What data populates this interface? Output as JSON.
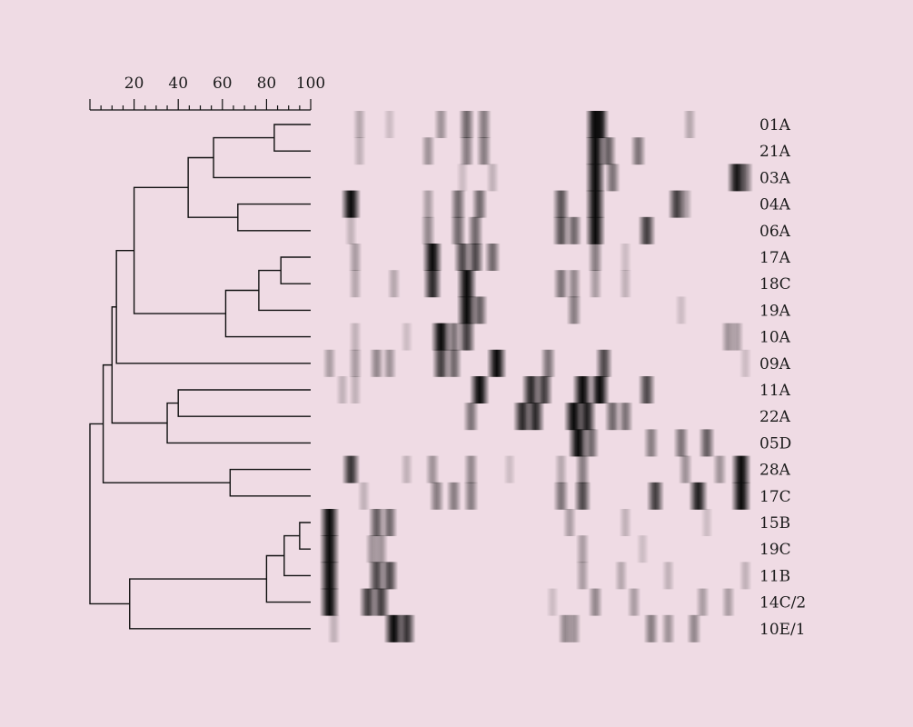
{
  "scale": {
    "tick_labels": [
      "20",
      "40",
      "60",
      "80",
      "100"
    ]
  },
  "colors": {
    "background": "#efdbe4",
    "line": "#111111",
    "band_dark": "#0a0a0a"
  },
  "dendrogram": {
    "leaves": [
      "01A",
      "21A",
      "03A",
      "04A",
      "06A",
      "17A",
      "18C",
      "19A",
      "10A",
      "09A",
      "11A",
      "22A",
      "05D",
      "28A",
      "17C",
      "15B",
      "19C",
      "11B",
      "14C/2",
      "10E/1"
    ],
    "merges": [
      {
        "a": 0,
        "b": 1,
        "sim": 83.5
      },
      {
        "a": "m0",
        "b": 2,
        "sim": 56
      },
      {
        "a": 3,
        "b": 4,
        "sim": 67
      },
      {
        "a": "m1",
        "b": "m2",
        "sim": 44.5
      },
      {
        "a": 5,
        "b": 6,
        "sim": 86.5
      },
      {
        "a": "m4",
        "b": 7,
        "sim": 76.5
      },
      {
        "a": "m5",
        "b": 8,
        "sim": 61.5
      },
      {
        "a": "m3",
        "b": "m6",
        "sim": 20
      },
      {
        "a": "m7",
        "b": 9,
        "sim": 12
      },
      {
        "a": 10,
        "b": 11,
        "sim": 40
      },
      {
        "a": "m9",
        "b": 12,
        "sim": 35
      },
      {
        "a": "m8",
        "b": "m10",
        "sim": 10
      },
      {
        "a": 13,
        "b": 14,
        "sim": 63.5
      },
      {
        "a": "m11",
        "b": "m12",
        "sim": 6
      },
      {
        "a": 15,
        "b": 16,
        "sim": 95
      },
      {
        "a": "m14",
        "b": 17,
        "sim": 88
      },
      {
        "a": "m15",
        "b": 18,
        "sim": 80
      },
      {
        "a": "m16",
        "b": 19,
        "sim": 18
      },
      {
        "a": "m13",
        "b": "m17",
        "sim": 0
      }
    ]
  },
  "bands": [
    [
      [
        0.08,
        0.25
      ],
      [
        0.15,
        0.15
      ],
      [
        0.27,
        0.35
      ],
      [
        0.33,
        0.55
      ],
      [
        0.37,
        0.45
      ],
      [
        0.63,
        1.0
      ],
      [
        0.64,
        0.9
      ],
      [
        0.85,
        0.25
      ]
    ],
    [
      [
        0.08,
        0.2
      ],
      [
        0.24,
        0.35
      ],
      [
        0.33,
        0.45
      ],
      [
        0.37,
        0.45
      ],
      [
        0.63,
        1.0
      ],
      [
        0.66,
        0.6
      ],
      [
        0.73,
        0.5
      ]
    ],
    [
      [
        0.32,
        0.15
      ],
      [
        0.39,
        0.2
      ],
      [
        0.63,
        1.0
      ],
      [
        0.67,
        0.5
      ],
      [
        0.96,
        0.95
      ],
      [
        0.98,
        0.5
      ]
    ],
    [
      [
        0.06,
        1.0
      ],
      [
        0.24,
        0.3
      ],
      [
        0.31,
        0.55
      ],
      [
        0.36,
        0.55
      ],
      [
        0.55,
        0.65
      ],
      [
        0.63,
        1.0
      ],
      [
        0.82,
        0.75
      ],
      [
        0.84,
        0.3
      ]
    ],
    [
      [
        0.06,
        0.2
      ],
      [
        0.24,
        0.4
      ],
      [
        0.31,
        0.55
      ],
      [
        0.35,
        0.55
      ],
      [
        0.55,
        0.65
      ],
      [
        0.58,
        0.55
      ],
      [
        0.63,
        1.0
      ],
      [
        0.75,
        0.75
      ]
    ],
    [
      [
        0.07,
        0.3
      ],
      [
        0.25,
        1.0
      ],
      [
        0.32,
        0.7
      ],
      [
        0.35,
        0.7
      ],
      [
        0.39,
        0.55
      ],
      [
        0.63,
        0.45
      ],
      [
        0.7,
        0.15
      ]
    ],
    [
      [
        0.07,
        0.25
      ],
      [
        0.16,
        0.25
      ],
      [
        0.25,
        0.85
      ],
      [
        0.33,
        1.0
      ],
      [
        0.55,
        0.5
      ],
      [
        0.58,
        0.4
      ],
      [
        0.63,
        0.3
      ],
      [
        0.7,
        0.2
      ]
    ],
    [
      [
        0.33,
        1.0
      ],
      [
        0.36,
        0.6
      ],
      [
        0.58,
        0.45
      ],
      [
        0.83,
        0.15
      ]
    ],
    [
      [
        0.07,
        0.2
      ],
      [
        0.19,
        0.15
      ],
      [
        0.27,
        1.0
      ],
      [
        0.3,
        0.5
      ],
      [
        0.33,
        0.75
      ],
      [
        0.94,
        0.35
      ],
      [
        0.96,
        0.3
      ]
    ],
    [
      [
        0.01,
        0.3
      ],
      [
        0.07,
        0.3
      ],
      [
        0.12,
        0.4
      ],
      [
        0.15,
        0.35
      ],
      [
        0.27,
        0.75
      ],
      [
        0.3,
        0.55
      ],
      [
        0.4,
        1.0
      ],
      [
        0.52,
        0.5
      ],
      [
        0.65,
        0.7
      ],
      [
        0.98,
        0.15
      ]
    ],
    [
      [
        0.04,
        0.2
      ],
      [
        0.07,
        0.2
      ],
      [
        0.36,
        1.0
      ],
      [
        0.48,
        0.85
      ],
      [
        0.51,
        0.75
      ],
      [
        0.6,
        1.0
      ],
      [
        0.64,
        1.0
      ],
      [
        0.75,
        0.7
      ]
    ],
    [
      [
        0.34,
        0.5
      ],
      [
        0.46,
        0.85
      ],
      [
        0.49,
        0.85
      ],
      [
        0.58,
        1.0
      ],
      [
        0.61,
        0.9
      ],
      [
        0.67,
        0.55
      ],
      [
        0.7,
        0.5
      ]
    ],
    [
      [
        0.59,
        1.0
      ],
      [
        0.62,
        0.55
      ],
      [
        0.76,
        0.45
      ],
      [
        0.83,
        0.5
      ],
      [
        0.89,
        0.6
      ]
    ],
    [
      [
        0.06,
        0.8
      ],
      [
        0.19,
        0.2
      ],
      [
        0.25,
        0.35
      ],
      [
        0.34,
        0.4
      ],
      [
        0.43,
        0.15
      ],
      [
        0.55,
        0.25
      ],
      [
        0.6,
        0.45
      ],
      [
        0.84,
        0.35
      ],
      [
        0.92,
        0.35
      ],
      [
        0.97,
        1.0
      ]
    ],
    [
      [
        0.09,
        0.2
      ],
      [
        0.26,
        0.45
      ],
      [
        0.3,
        0.45
      ],
      [
        0.34,
        0.45
      ],
      [
        0.55,
        0.5
      ],
      [
        0.6,
        0.7
      ],
      [
        0.77,
        0.75
      ],
      [
        0.87,
        0.9
      ],
      [
        0.97,
        1.0
      ]
    ],
    [
      [
        0.01,
        1.0
      ],
      [
        0.12,
        0.6
      ],
      [
        0.15,
        0.55
      ],
      [
        0.57,
        0.3
      ],
      [
        0.7,
        0.2
      ],
      [
        0.89,
        0.15
      ]
    ],
    [
      [
        0.01,
        1.0
      ],
      [
        0.11,
        0.35
      ],
      [
        0.13,
        0.35
      ],
      [
        0.6,
        0.3
      ],
      [
        0.74,
        0.15
      ]
    ],
    [
      [
        0.01,
        1.0
      ],
      [
        0.12,
        0.7
      ],
      [
        0.15,
        0.7
      ],
      [
        0.6,
        0.3
      ],
      [
        0.69,
        0.25
      ],
      [
        0.8,
        0.2
      ],
      [
        0.98,
        0.2
      ]
    ],
    [
      [
        0.01,
        1.0
      ],
      [
        0.1,
        0.75
      ],
      [
        0.13,
        0.75
      ],
      [
        0.53,
        0.15
      ],
      [
        0.63,
        0.4
      ],
      [
        0.72,
        0.3
      ],
      [
        0.88,
        0.3
      ],
      [
        0.94,
        0.3
      ]
    ],
    [
      [
        0.02,
        0.2
      ],
      [
        0.16,
        1.0
      ],
      [
        0.19,
        0.8
      ],
      [
        0.56,
        0.4
      ],
      [
        0.58,
        0.35
      ],
      [
        0.76,
        0.45
      ],
      [
        0.8,
        0.35
      ],
      [
        0.86,
        0.4
      ]
    ]
  ]
}
